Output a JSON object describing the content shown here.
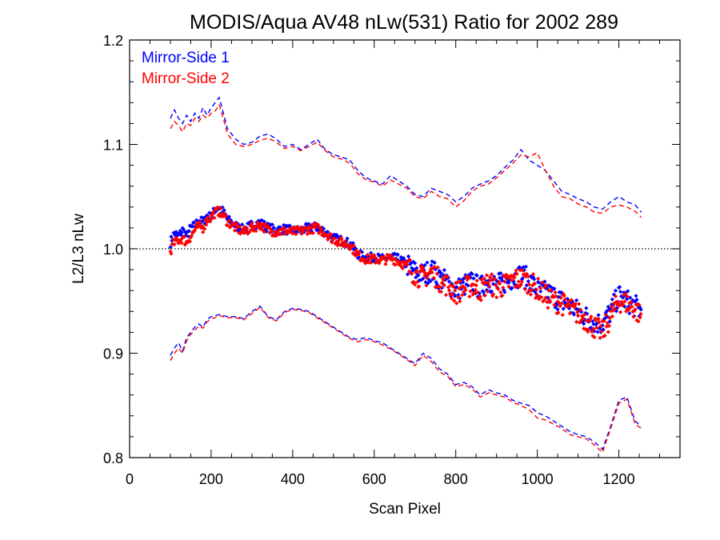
{
  "chart_data": {
    "type": "line",
    "title": "MODIS/Aqua AV48 nLw(531) Ratio for 2002 289",
    "xlabel": "Scan Pixel",
    "ylabel": "L2/L3 nLw",
    "xlim": [
      0,
      1350
    ],
    "ylim": [
      0.8,
      1.2
    ],
    "xticks": [
      0,
      200,
      400,
      600,
      800,
      1000,
      1200
    ],
    "xtick_labels": [
      "0",
      "200",
      "400",
      "600",
      "800",
      "1000",
      "1200"
    ],
    "yticks": [
      0.8,
      0.9,
      1.0,
      1.1,
      1.2
    ],
    "ytick_labels": [
      "0.8",
      "0.9",
      "1.0",
      "1.1",
      "1.2"
    ],
    "x_minor_step": 50,
    "y_minor_step": 0.02,
    "reference_line": 1.0,
    "grid": false,
    "legend_position": "top-left",
    "series": [
      {
        "name": "Mirror-Side 1",
        "color": "#0000ff",
        "marker": "diamond",
        "x": [
          100,
          110,
          120,
          130,
          140,
          150,
          160,
          170,
          180,
          190,
          200,
          210,
          220,
          230,
          240,
          260,
          280,
          300,
          320,
          340,
          360,
          380,
          400,
          420,
          440,
          460,
          480,
          500,
          520,
          540,
          560,
          580,
          600,
          620,
          640,
          660,
          680,
          700,
          720,
          740,
          760,
          780,
          800,
          820,
          840,
          860,
          880,
          900,
          920,
          940,
          960,
          980,
          1000,
          1020,
          1040,
          1060,
          1080,
          1100,
          1120,
          1140,
          1160,
          1180,
          1200,
          1220,
          1240,
          1255
        ],
        "mean": [
          1.006,
          1.015,
          1.012,
          1.018,
          1.012,
          1.02,
          1.022,
          1.028,
          1.025,
          1.032,
          1.03,
          1.038,
          1.04,
          1.035,
          1.028,
          1.022,
          1.018,
          1.023,
          1.025,
          1.02,
          1.018,
          1.019,
          1.017,
          1.018,
          1.02,
          1.021,
          1.016,
          1.01,
          1.008,
          1.005,
          0.995,
          0.991,
          0.992,
          0.99,
          0.992,
          0.99,
          0.985,
          0.978,
          0.975,
          0.98,
          0.972,
          0.968,
          0.96,
          0.965,
          0.968,
          0.962,
          0.97,
          0.965,
          0.968,
          0.972,
          0.975,
          0.97,
          0.96,
          0.958,
          0.955,
          0.95,
          0.945,
          0.94,
          0.935,
          0.93,
          0.928,
          0.94,
          0.955,
          0.95,
          0.945,
          0.94
        ],
        "upper": [
          1.125,
          1.133,
          1.125,
          1.12,
          1.128,
          1.122,
          1.13,
          1.125,
          1.135,
          1.128,
          1.135,
          1.14,
          1.145,
          1.13,
          1.115,
          1.105,
          1.1,
          1.102,
          1.108,
          1.11,
          1.105,
          1.098,
          1.1,
          1.095,
          1.1,
          1.105,
          1.095,
          1.09,
          1.088,
          1.085,
          1.075,
          1.068,
          1.065,
          1.062,
          1.07,
          1.065,
          1.06,
          1.052,
          1.05,
          1.058,
          1.055,
          1.052,
          1.045,
          1.05,
          1.058,
          1.062,
          1.065,
          1.07,
          1.078,
          1.085,
          1.095,
          1.085,
          1.08,
          1.075,
          1.065,
          1.055,
          1.052,
          1.048,
          1.045,
          1.04,
          1.038,
          1.045,
          1.05,
          1.045,
          1.042,
          1.035
        ],
        "lower": [
          0.898,
          0.905,
          0.91,
          0.902,
          0.915,
          0.92,
          0.925,
          0.928,
          0.925,
          0.932,
          0.935,
          0.936,
          0.937,
          0.936,
          0.935,
          0.935,
          0.933,
          0.94,
          0.945,
          0.935,
          0.932,
          0.94,
          0.943,
          0.942,
          0.94,
          0.935,
          0.93,
          0.925,
          0.92,
          0.915,
          0.913,
          0.915,
          0.912,
          0.91,
          0.905,
          0.9,
          0.895,
          0.89,
          0.9,
          0.895,
          0.885,
          0.88,
          0.87,
          0.872,
          0.868,
          0.86,
          0.865,
          0.862,
          0.86,
          0.855,
          0.852,
          0.85,
          0.843,
          0.84,
          0.835,
          0.83,
          0.825,
          0.822,
          0.82,
          0.815,
          0.808,
          0.83,
          0.855,
          0.858,
          0.835,
          0.83
        ]
      },
      {
        "name": "Mirror-Side 2",
        "color": "#ff0000",
        "marker": "diamond",
        "x": [
          100,
          110,
          120,
          130,
          140,
          150,
          160,
          170,
          180,
          190,
          200,
          210,
          220,
          230,
          240,
          260,
          280,
          300,
          320,
          340,
          360,
          380,
          400,
          420,
          440,
          460,
          480,
          500,
          520,
          540,
          560,
          580,
          600,
          620,
          640,
          660,
          680,
          700,
          720,
          740,
          760,
          780,
          800,
          820,
          840,
          860,
          880,
          900,
          920,
          940,
          960,
          980,
          1000,
          1020,
          1040,
          1060,
          1080,
          1100,
          1120,
          1140,
          1160,
          1180,
          1200,
          1220,
          1240,
          1255
        ],
        "mean": [
          0.998,
          1.006,
          1.008,
          1.01,
          1.006,
          1.012,
          1.018,
          1.022,
          1.02,
          1.028,
          1.03,
          1.035,
          1.036,
          1.032,
          1.026,
          1.02,
          1.016,
          1.02,
          1.023,
          1.018,
          1.016,
          1.017,
          1.016,
          1.017,
          1.019,
          1.02,
          1.015,
          1.009,
          1.006,
          1.004,
          0.994,
          0.99,
          0.99,
          0.989,
          0.991,
          0.988,
          0.983,
          0.976,
          0.972,
          0.978,
          0.97,
          0.965,
          0.958,
          0.962,
          0.965,
          0.96,
          0.968,
          0.962,
          0.965,
          0.97,
          0.972,
          0.968,
          0.962,
          0.955,
          0.95,
          0.948,
          0.942,
          0.938,
          0.932,
          0.925,
          0.92,
          0.935,
          0.95,
          0.948,
          0.942,
          0.935
        ],
        "upper": [
          1.115,
          1.122,
          1.118,
          1.112,
          1.12,
          1.118,
          1.125,
          1.122,
          1.128,
          1.125,
          1.13,
          1.132,
          1.138,
          1.125,
          1.11,
          1.1,
          1.098,
          1.1,
          1.104,
          1.106,
          1.102,
          1.096,
          1.098,
          1.094,
          1.098,
          1.102,
          1.094,
          1.088,
          1.086,
          1.082,
          1.072,
          1.066,
          1.064,
          1.06,
          1.066,
          1.062,
          1.058,
          1.05,
          1.048,
          1.055,
          1.05,
          1.048,
          1.04,
          1.046,
          1.055,
          1.06,
          1.062,
          1.068,
          1.075,
          1.082,
          1.09,
          1.088,
          1.092,
          1.075,
          1.06,
          1.05,
          1.048,
          1.043,
          1.04,
          1.035,
          1.034,
          1.04,
          1.042,
          1.04,
          1.036,
          1.03
        ],
        "lower": [
          0.893,
          0.9,
          0.905,
          0.9,
          0.912,
          0.918,
          0.922,
          0.926,
          0.924,
          0.93,
          0.933,
          0.934,
          0.936,
          0.935,
          0.934,
          0.934,
          0.932,
          0.938,
          0.944,
          0.934,
          0.931,
          0.939,
          0.942,
          0.941,
          0.939,
          0.934,
          0.929,
          0.924,
          0.919,
          0.914,
          0.911,
          0.913,
          0.911,
          0.908,
          0.904,
          0.899,
          0.894,
          0.888,
          0.898,
          0.892,
          0.882,
          0.878,
          0.868,
          0.87,
          0.866,
          0.858,
          0.862,
          0.86,
          0.858,
          0.853,
          0.85,
          0.846,
          0.838,
          0.836,
          0.832,
          0.828,
          0.822,
          0.82,
          0.818,
          0.812,
          0.805,
          0.828,
          0.852,
          0.856,
          0.832,
          0.828
        ]
      }
    ]
  }
}
